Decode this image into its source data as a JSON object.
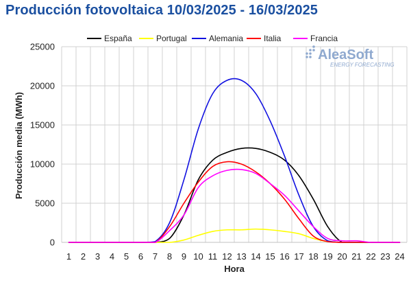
{
  "title": "Producción fotovoltaica 10/03/2025 - 16/03/2025",
  "logo": {
    "brand": "AleaSoft",
    "tagline": "ENERGY FORECASTING"
  },
  "chart_data": {
    "type": "line",
    "title": "Producción fotovoltaica 10/03/2025 - 16/03/2025",
    "xlabel": "Hora",
    "ylabel": "Producción media (MWh)",
    "x": [
      1,
      2,
      3,
      4,
      5,
      6,
      7,
      8,
      9,
      10,
      11,
      12,
      13,
      14,
      15,
      16,
      17,
      18,
      19,
      20,
      21,
      22,
      23,
      24
    ],
    "xlim": [
      0.5,
      24.5
    ],
    "ylim": [
      0,
      25000
    ],
    "yticks": [
      0,
      5000,
      10000,
      15000,
      20000,
      25000
    ],
    "grid": true,
    "legend_position": "top",
    "series": [
      {
        "name": "España",
        "color": "#000000",
        "values": [
          0,
          0,
          0,
          0,
          0,
          0,
          0,
          500,
          3500,
          8000,
          10500,
          11500,
          12000,
          12000,
          11500,
          10500,
          8500,
          5500,
          2000,
          0,
          0,
          0,
          0,
          0
        ]
      },
      {
        "name": "Portugal",
        "color": "#ffff00",
        "values": [
          0,
          0,
          0,
          0,
          0,
          0,
          0,
          0,
          300,
          900,
          1400,
          1600,
          1600,
          1700,
          1600,
          1400,
          1100,
          500,
          100,
          0,
          0,
          0,
          0,
          0
        ]
      },
      {
        "name": "Alemania",
        "color": "#1010e0",
        "values": [
          0,
          0,
          0,
          0,
          0,
          0,
          100,
          2500,
          8000,
          14500,
          19000,
          20700,
          20700,
          19000,
          15500,
          11000,
          6000,
          2000,
          200,
          0,
          0,
          0,
          0,
          0
        ]
      },
      {
        "name": "Italia",
        "color": "#ff0000",
        "values": [
          0,
          0,
          0,
          0,
          0,
          0,
          0,
          2000,
          5000,
          7700,
          9700,
          10300,
          10000,
          9000,
          7500,
          5500,
          3000,
          800,
          100,
          0,
          0,
          0,
          0,
          0
        ]
      },
      {
        "name": "Francia",
        "color": "#ff00ff",
        "values": [
          0,
          0,
          0,
          0,
          0,
          0,
          0,
          1500,
          3500,
          7000,
          8500,
          9200,
          9300,
          8800,
          7500,
          6000,
          4000,
          2000,
          500,
          200,
          200,
          0,
          0,
          0
        ]
      }
    ]
  }
}
